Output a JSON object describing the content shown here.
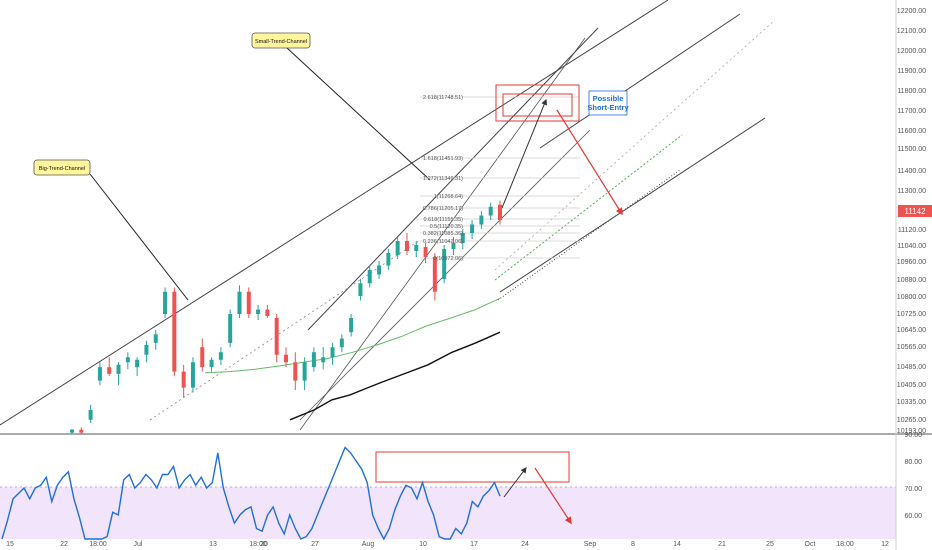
{
  "chart_data": {
    "type": "candlestick",
    "price_axis": {
      "ticks": [
        12200,
        12100,
        12000,
        11900,
        11800,
        11700,
        11600,
        11500,
        11400,
        11300,
        11200,
        11120,
        11040,
        10960,
        10880,
        10800,
        10725,
        10645,
        10565,
        10485,
        10405,
        10335,
        10265,
        10193
      ],
      "labels": [
        "12200.00",
        "12100.00",
        "12000.00",
        "11900.00",
        "11800.00",
        "11700.00",
        "11600.00",
        "11500.00",
        "11400.00",
        "11300.00",
        "11200.00",
        "11120.00",
        "11040.00",
        "10960.00",
        "10880.00",
        "10800.00",
        "10725.00",
        "10645.00",
        "10565.00",
        "10485.00",
        "10405.00",
        "10335.00",
        "10265.00",
        "10193.00"
      ],
      "current_price_label": "11142"
    },
    "rsi_axis": {
      "ticks": [
        90,
        80,
        70,
        60
      ],
      "labels": [
        "90.00",
        "80.00",
        "70.00",
        "60.00"
      ],
      "band": [
        30,
        70
      ]
    },
    "x_axis": {
      "labels": [
        "15",
        "22",
        "18:00",
        "Jul",
        "13",
        "18:00",
        "20",
        "27",
        "Aug",
        "10",
        "17",
        "24",
        "Sep",
        "8",
        "14",
        "21",
        "25",
        "Oct",
        "18:00",
        "12"
      ]
    },
    "fib_levels": [
      {
        "ratio": "2.618",
        "value": "11748.51"
      },
      {
        "ratio": "1.618",
        "value": "11451.93"
      },
      {
        "ratio": "1.272",
        "value": "11349.31"
      },
      {
        "ratio": "1",
        "value": "11268.64"
      },
      {
        "ratio": "0.786",
        "value": "11205.17"
      },
      {
        "ratio": "0.618",
        "value": "11155.35"
      },
      {
        "ratio": "0.5",
        "value": "11120.35"
      },
      {
        "ratio": "0.382",
        "value": "11085.36"
      },
      {
        "ratio": "0.236",
        "value": "11042.06"
      },
      {
        "ratio": "0",
        "value": "10972.06"
      }
    ],
    "annotations": {
      "big_trend_channel": "Big-Trend-Channel",
      "small_trend_channel": "Small-Trend-Channel",
      "possible_short_entry": "Possible\nShort-Entry"
    },
    "candles": [
      {
        "o": 10180,
        "h": 10200,
        "l": 10170,
        "c": 10195
      },
      {
        "o": 10195,
        "h": 10210,
        "l": 10175,
        "c": 10180
      },
      {
        "o": 10260,
        "h": 10320,
        "l": 10240,
        "c": 10300
      },
      {
        "o": 10420,
        "h": 10500,
        "l": 10400,
        "c": 10480
      },
      {
        "o": 10480,
        "h": 10520,
        "l": 10440,
        "c": 10450
      },
      {
        "o": 10450,
        "h": 10500,
        "l": 10400,
        "c": 10490
      },
      {
        "o": 10500,
        "h": 10540,
        "l": 10470,
        "c": 10520
      },
      {
        "o": 10480,
        "h": 10520,
        "l": 10440,
        "c": 10510
      },
      {
        "o": 10530,
        "h": 10590,
        "l": 10500,
        "c": 10570
      },
      {
        "o": 10580,
        "h": 10640,
        "l": 10550,
        "c": 10620
      },
      {
        "o": 10720,
        "h": 10840,
        "l": 10700,
        "c": 10820
      },
      {
        "o": 10820,
        "h": 10840,
        "l": 10440,
        "c": 10460
      },
      {
        "o": 10460,
        "h": 10490,
        "l": 10350,
        "c": 10390
      },
      {
        "o": 10390,
        "h": 10520,
        "l": 10370,
        "c": 10500
      },
      {
        "o": 10560,
        "h": 10600,
        "l": 10460,
        "c": 10480
      },
      {
        "o": 10480,
        "h": 10520,
        "l": 10460,
        "c": 10510
      },
      {
        "o": 10510,
        "h": 10560,
        "l": 10490,
        "c": 10540
      },
      {
        "o": 10580,
        "h": 10740,
        "l": 10560,
        "c": 10720
      },
      {
        "o": 10720,
        "h": 10850,
        "l": 10700,
        "c": 10820
      },
      {
        "o": 10820,
        "h": 10840,
        "l": 10700,
        "c": 10720
      },
      {
        "o": 10720,
        "h": 10760,
        "l": 10690,
        "c": 10740
      },
      {
        "o": 10740,
        "h": 10760,
        "l": 10700,
        "c": 10710
      },
      {
        "o": 10700,
        "h": 10720,
        "l": 10500,
        "c": 10530
      },
      {
        "o": 10530,
        "h": 10560,
        "l": 10480,
        "c": 10500
      },
      {
        "o": 10500,
        "h": 10540,
        "l": 10380,
        "c": 10420
      },
      {
        "o": 10420,
        "h": 10520,
        "l": 10380,
        "c": 10500
      },
      {
        "o": 10480,
        "h": 10560,
        "l": 10460,
        "c": 10540
      },
      {
        "o": 10500,
        "h": 10560,
        "l": 10470,
        "c": 10520
      },
      {
        "o": 10520,
        "h": 10580,
        "l": 10490,
        "c": 10560
      },
      {
        "o": 10560,
        "h": 10620,
        "l": 10540,
        "c": 10600
      },
      {
        "o": 10630,
        "h": 10720,
        "l": 10610,
        "c": 10700
      },
      {
        "o": 10800,
        "h": 10880,
        "l": 10780,
        "c": 10860
      },
      {
        "o": 10860,
        "h": 10940,
        "l": 10840,
        "c": 10920
      },
      {
        "o": 10900,
        "h": 10960,
        "l": 10880,
        "c": 10940
      },
      {
        "o": 10940,
        "h": 11020,
        "l": 10920,
        "c": 11000
      },
      {
        "o": 10990,
        "h": 11080,
        "l": 10970,
        "c": 11060
      },
      {
        "o": 11060,
        "h": 11100,
        "l": 10990,
        "c": 11010
      },
      {
        "o": 11010,
        "h": 11060,
        "l": 10980,
        "c": 11040
      },
      {
        "o": 11030,
        "h": 11050,
        "l": 10950,
        "c": 10980
      },
      {
        "o": 10980,
        "h": 11000,
        "l": 10780,
        "c": 10820
      },
      {
        "o": 10880,
        "h": 11040,
        "l": 10860,
        "c": 11020
      },
      {
        "o": 11020,
        "h": 11080,
        "l": 10990,
        "c": 11050
      },
      {
        "o": 11050,
        "h": 11120,
        "l": 11020,
        "c": 11100
      },
      {
        "o": 11100,
        "h": 11160,
        "l": 11070,
        "c": 11140
      },
      {
        "o": 11140,
        "h": 11200,
        "l": 11120,
        "c": 11180
      },
      {
        "o": 11180,
        "h": 11240,
        "l": 11160,
        "c": 11220
      },
      {
        "o": 11230,
        "h": 11250,
        "l": 11140,
        "c": 11160
      }
    ],
    "rsi": [
      44,
      58,
      66,
      68,
      70,
      66,
      70,
      71,
      74,
      65,
      71,
      74,
      76,
      66,
      59,
      40,
      35,
      30,
      41,
      52,
      61,
      60,
      73,
      75,
      70,
      72,
      75,
      73,
      70,
      75,
      75,
      78,
      70,
      73,
      75,
      71,
      74,
      70,
      72,
      83,
      70,
      63,
      57,
      60,
      62,
      63,
      55,
      54,
      60,
      63,
      57,
      53,
      60,
      55,
      48,
      52,
      55,
      60,
      65,
      70,
      75,
      80,
      85,
      83,
      80,
      77,
      72,
      60,
      55,
      48,
      55,
      62,
      67,
      71,
      70,
      66,
      72,
      65,
      60,
      52,
      45,
      48,
      55,
      53,
      57,
      65,
      63,
      67,
      69,
      72,
      67
    ],
    "sma_green": [
      [
        10240,
        10455
      ],
      [
        10300,
        10460
      ],
      [
        10360,
        10470
      ],
      [
        10420,
        10485
      ],
      [
        10480,
        10500
      ],
      [
        10540,
        10515
      ],
      [
        10600,
        10540
      ],
      [
        10660,
        10570
      ],
      [
        10720,
        10610
      ],
      [
        10780,
        10660
      ],
      [
        10840,
        10700
      ],
      [
        10900,
        10740
      ],
      [
        10960,
        10790
      ]
    ],
    "sma_black": [
      [
        10290,
        10260
      ],
      [
        10330,
        10300
      ],
      [
        10360,
        10340
      ],
      [
        10390,
        10360
      ],
      [
        10420,
        10390
      ],
      [
        10450,
        10420
      ],
      [
        10480,
        10450
      ],
      [
        10520,
        10490
      ],
      [
        10560,
        10540
      ],
      [
        10600,
        10580
      ],
      [
        10640,
        10630
      ]
    ]
  }
}
